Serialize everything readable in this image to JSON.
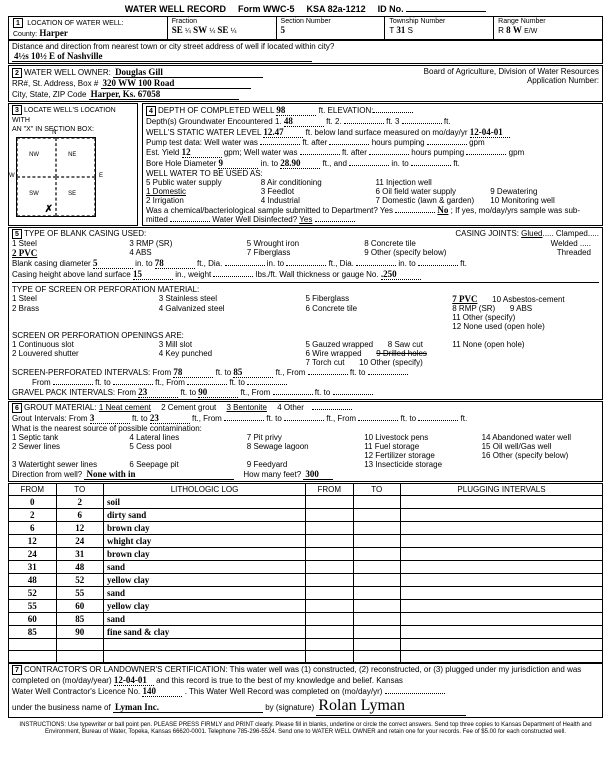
{
  "form": {
    "title": "WATER WELL RECORD",
    "form_no": "Form WWC-5",
    "ksa": "KSA 82a-1212",
    "id_label": "ID No."
  },
  "location": {
    "header": "LOCATION OF WATER WELL:",
    "county_label": "County:",
    "county": "Harper",
    "fraction": "Fraction",
    "q1": "SE",
    "q2": "SW",
    "q3": "SE",
    "section_label": "Section Number",
    "section": "5",
    "township_label": "Township Number",
    "township": "31",
    "township_dir": "S",
    "range_label": "Range Number",
    "range": "8",
    "range_dir1": "W",
    "range_dir2": "E/W",
    "distance_label": "Distance and direction from nearest town or city street address of well if located within city?",
    "distance": "4½s 10½ E of Nashville"
  },
  "owner": {
    "header": "WATER WELL OWNER:",
    "name": "Douglas Gill",
    "addr_label": "RR#, St. Address, Box #",
    "addr": "320 WW 100 Road",
    "city_label": "City, State, ZIP Code",
    "city": "Harper, Ks. 67058",
    "board": "Board of Agriculture, Division of Water Resources",
    "app_label": "Application Number:"
  },
  "locate": {
    "header": "LOCATE WELL'S LOCATION WITH",
    "sub": "AN \"X\" IN SECTION BOX:"
  },
  "depth": {
    "header": "DEPTH OF COMPLETED WELL",
    "completed": "98",
    "elev_label": "ft. ELEVATION:",
    "gw_label": "Depth(s) Groundwater Encountered",
    "gw1": "48",
    "static_label": "WELL'S STATIC WATER LEVEL",
    "static": "12.47",
    "static_suffix": "ft. below land surface measured on mo/day/yr",
    "static_date": "12-04-01",
    "pump_label": "Pump test data: Well water was",
    "yield_label": "Est. Yield",
    "yield": "12",
    "yield_unit": "gpm",
    "well_water_label": "Well water was",
    "bore_label": "Bore Hole Diameter",
    "bore1": "9",
    "bore_to1": "28.90",
    "uses_label": "WELL WATER TO BE USED AS:",
    "uses": [
      "1 Domestic",
      "2 Irrigation",
      "3 Feedlot",
      "4 Industrial",
      "5 Public water supply",
      "6 Oil field water supply",
      "7 Domestic (lawn & garden)",
      "8 Air conditioning",
      "9 Dewatering",
      "10 Monitoring well",
      "11 Injection well",
      "12 Other (Specify below)"
    ],
    "chem_label": "Was a chemical/bacteriological sample submitted to Department? Yes",
    "chem_no": "No",
    "chem_suffix": "; If yes, mo/day/yrs sample was sub-",
    "mitted": "mitted",
    "disinf_label": "Water Well Disinfected?",
    "disinf_yes": "Yes"
  },
  "casing": {
    "header": "TYPE OF BLANK CASING USED:",
    "opts1": [
      "1 Steel",
      "2 PVC",
      "3 RMP (SR)",
      "4 ABS",
      "5 Wrought iron",
      "6 Asbestos-Cement",
      "7 Fiberglass",
      "8 Concrete tile",
      "9 Other (specify below)"
    ],
    "joints_label": "CASING JOINTS:",
    "joints": [
      "Glued",
      "Clamped",
      "Welded",
      "Threaded"
    ],
    "diam_label": "Blank casing diameter",
    "diam": "5",
    "diam_to": "78",
    "height_label": "Casing height above land surface",
    "height": "15",
    "weight_label": "in., weight",
    "gauge_label": "lbs./ft. Wall thickness or gauge No.",
    "gauge": ".250"
  },
  "screen": {
    "header": "TYPE OF SCREEN OR PERFORATION MATERIAL:",
    "opts": [
      "1 Steel",
      "2 Brass",
      "3 Stainless steel",
      "4 Galvanized steel",
      "5 Fiberglass",
      "6 Concrete tile",
      "7 PVC",
      "8 RMP (SR)",
      "9 ABS",
      "10 Asbestos-cement",
      "11 Other (specify)",
      "12 None used (open hole)"
    ],
    "openings_label": "SCREEN OR PERFORATION OPENINGS ARE:",
    "open_opts": [
      "1 Continuous slot",
      "2 Louvered shutter",
      "3 Mill slot",
      "4 Key punched",
      "5 Gauzed wrapped",
      "6 Wire wrapped",
      "7 Torch cut",
      "8 Saw cut",
      "9 Drilled holes",
      "10 Other (specify)",
      "11 None (open hole)"
    ],
    "perf_label": "SCREEN-PERFORATED INTERVALS: From",
    "perf_from": "78",
    "perf_to": "85",
    "gravel_label": "GRAVEL PACK INTERVALS: From",
    "gravel_from": "23",
    "gravel_to": "90"
  },
  "grout": {
    "header": "GROUT MATERIAL:",
    "opts": [
      "1 Neat cement",
      "2 Cement grout",
      "3 Bentonite",
      "4 Other"
    ],
    "int_label": "Grout Intervals: From",
    "int_from": "3",
    "int_to": "23",
    "contam_label": "What is the nearest source of possible contamination:",
    "contam_opts": [
      "1 Septic tank",
      "2 Sewer lines",
      "3 Watertight sewer lines",
      "4 Lateral lines",
      "5 Cess pool",
      "6 Seepage pit",
      "7 Pit privy",
      "8 Sewage lagoon",
      "9 Feedyard",
      "10 Livestock pens",
      "11 Fuel storage",
      "12 Fertilizer storage",
      "13 Insecticide storage",
      "14 Abandoned water well",
      "15 Oil well/Gas well",
      "16 Other (specify below)"
    ],
    "dir_label": "Direction from well?",
    "dir": "None with in",
    "feet_label": "How many feet?",
    "feet": "300"
  },
  "log": {
    "headers": [
      "FROM",
      "TO",
      "LITHOLOGIC LOG",
      "FROM",
      "TO",
      "PLUGGING INTERVALS"
    ],
    "rows": [
      [
        "0",
        "2",
        "soil",
        "",
        "",
        ""
      ],
      [
        "2",
        "6",
        "dirty sand",
        "",
        "",
        ""
      ],
      [
        "6",
        "12",
        "brown clay",
        "",
        "",
        ""
      ],
      [
        "12",
        "24",
        "whight clay",
        "",
        "",
        ""
      ],
      [
        "24",
        "31",
        "brown clay",
        "",
        "",
        ""
      ],
      [
        "31",
        "48",
        "sand",
        "",
        "",
        ""
      ],
      [
        "48",
        "52",
        "yellow clay",
        "",
        "",
        ""
      ],
      [
        "52",
        "55",
        "sand",
        "",
        "",
        ""
      ],
      [
        "55",
        "60",
        "yellow clay",
        "",
        "",
        ""
      ],
      [
        "60",
        "85",
        "sand",
        "",
        "",
        ""
      ],
      [
        "85",
        "90",
        "fine sand & clay",
        "",
        "",
        ""
      ],
      [
        "",
        "",
        "",
        "",
        "",
        ""
      ],
      [
        "",
        "",
        "",
        "",
        "",
        ""
      ]
    ]
  },
  "cert": {
    "header": "CONTRACTOR'S OR LANDOWNER'S CERTIFICATION: This water well was (1) constructed, (2) reconstructed, or (3) plugged under my jurisdiction and was",
    "completed_label": "completed on (mo/day/year)",
    "completed": "12-04-01",
    "true_label": "and this record is true to the best of my knowledge and belief. Kansas",
    "lic_label": "Water Well Contractor's Licence No.",
    "lic": "140",
    "rec_label": "This Water Well Record was completed on (mo/day/yr)",
    "biz_label": "under the business name of",
    "biz": "Lyman Inc.",
    "sig_label": "by (signature)",
    "sig": "Rolan Lyman"
  },
  "instructions": "INSTRUCTIONS: Use typewriter or ball point pen. PLEASE PRESS FIRMLY and PRINT clearly. Please fill in blanks, underline or circle the correct answers. Send top three copies to Kansas Department of Health and Environment, Bureau of Water, Topeka, Kansas 66620-0001. Telephone 785-296-5524. Send one to WATER WELL OWNER and retain one for your records. Fee of $5.00 for each constructed well."
}
